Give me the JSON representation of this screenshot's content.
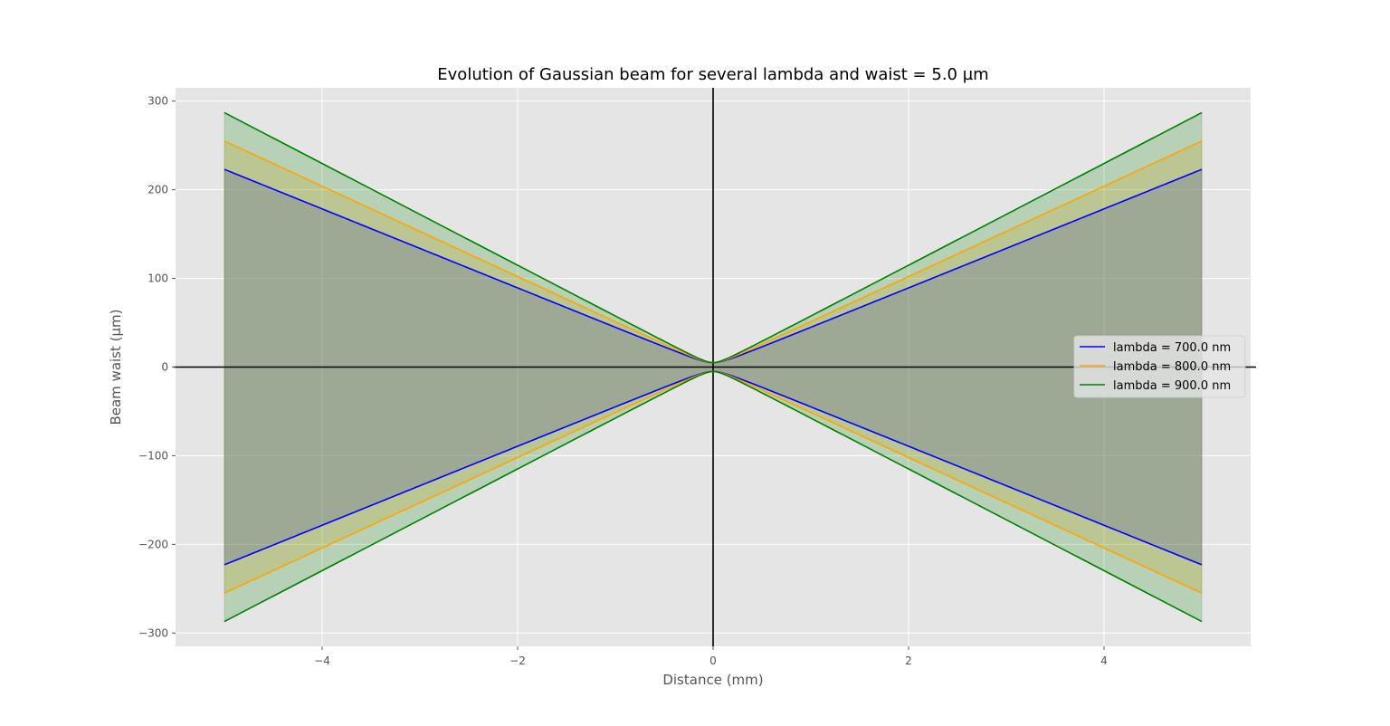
{
  "chart_data": {
    "type": "line",
    "title": "Evolution of Gaussian beam for several lambda and waist  = 5.0 µm",
    "xlabel": "Distance (mm)",
    "ylabel": "Beam waist (µm)",
    "xlim": [
      -5.5,
      5.5
    ],
    "ylim": [
      -315,
      315
    ],
    "xticks": [
      -4,
      -2,
      0,
      2,
      4
    ],
    "xtick_labels": [
      "−4",
      "−2",
      "0",
      "2",
      "4"
    ],
    "yticks": [
      -300,
      -200,
      -100,
      0,
      100,
      200,
      300
    ],
    "ytick_labels": [
      "−300",
      "−200",
      "−100",
      "0",
      "100",
      "200",
      "300"
    ],
    "grid": true,
    "style": "ggplot",
    "background": "#e5e5e5",
    "zero_lines": true,
    "legend_position": "center-right",
    "waist_um": 5.0,
    "x_range_mm": [
      -5,
      5
    ],
    "series": [
      {
        "name": "lambda = 700.0 nm",
        "color": "#0000ff",
        "fill_alpha": 0.2,
        "wavelength_nm": 700.0,
        "w_at_edge_um": 223
      },
      {
        "name": "lambda = 800.0 nm",
        "color": "#ffa500",
        "fill_alpha": 0.2,
        "wavelength_nm": 800.0,
        "w_at_edge_um": 255
      },
      {
        "name": "lambda = 900.0 nm",
        "color": "#008000",
        "fill_alpha": 0.2,
        "wavelength_nm": 900.0,
        "w_at_edge_um": 287
      }
    ]
  }
}
